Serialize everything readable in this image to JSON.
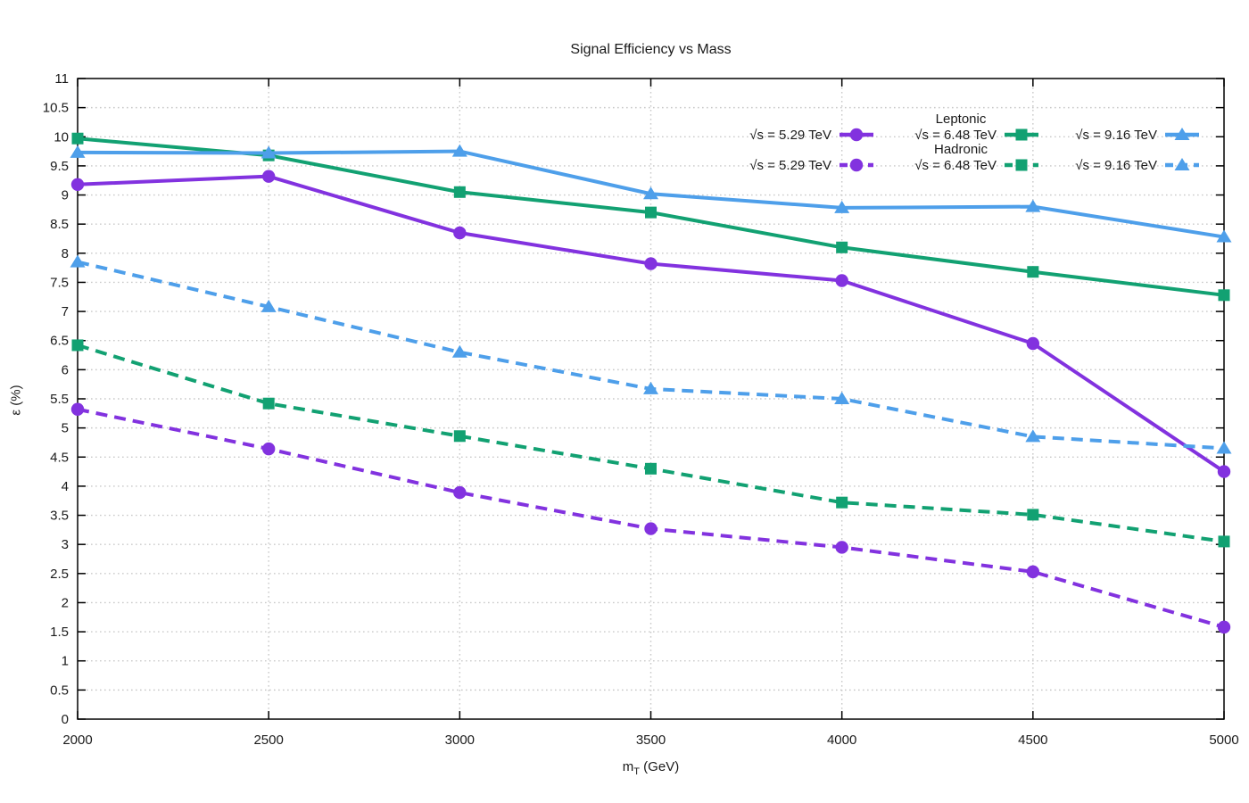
{
  "figure": {
    "title": "Signal Efficiency vs Mass",
    "xlabel": {
      "base": "m",
      "sub": "T",
      "rest": " (GeV)"
    },
    "ylabel": "ε (%)",
    "background": "#ffffff",
    "text_color": "#1a1a1a",
    "grid_color": "#c9c9c9",
    "frame_color": "#000000"
  },
  "chart_data": {
    "type": "line",
    "title": "Signal Efficiency vs Mass",
    "xlabel": "m_T (GeV)",
    "ylabel": "ε (%)",
    "xlim": [
      2000,
      5000
    ],
    "ylim": [
      0,
      11
    ],
    "xticks": [
      2000,
      2500,
      3000,
      3500,
      4000,
      4500,
      5000
    ],
    "ytick_step": 0.5,
    "grid": true,
    "legend_position": "inside top-right, transparent, two groups of three columns",
    "x": [
      2000,
      2500,
      3000,
      3500,
      4000,
      4500,
      5000
    ],
    "series": [
      {
        "name": "√s = 5.29 TeV",
        "group": "Leptonic",
        "style": "solid",
        "marker": "circle",
        "color": "#8232DF",
        "values": [
          9.18,
          9.32,
          8.35,
          7.82,
          7.53,
          6.45,
          4.25
        ]
      },
      {
        "name": "√s = 6.48 TeV",
        "group": "Leptonic",
        "style": "solid",
        "marker": "square",
        "color": "#12A172",
        "values": [
          9.97,
          9.68,
          9.05,
          8.7,
          8.1,
          7.68,
          7.28
        ]
      },
      {
        "name": "√s = 9.16 TeV",
        "group": "Leptonic",
        "style": "solid",
        "marker": "triangle",
        "color": "#4E9FEA",
        "values": [
          9.73,
          9.72,
          9.75,
          9.02,
          8.78,
          8.8,
          8.28
        ]
      },
      {
        "name": "√s = 5.29 TeV",
        "group": "Hadronic",
        "style": "dashed",
        "marker": "circle",
        "color": "#8232DF",
        "values": [
          5.32,
          4.64,
          3.89,
          3.27,
          2.95,
          2.53,
          1.58
        ]
      },
      {
        "name": "√s = 6.48 TeV",
        "group": "Hadronic",
        "style": "dashed",
        "marker": "square",
        "color": "#12A172",
        "values": [
          6.42,
          5.42,
          4.86,
          4.3,
          3.72,
          3.51,
          3.05
        ]
      },
      {
        "name": "√s = 9.16 TeV",
        "group": "Hadronic",
        "style": "dashed",
        "marker": "triangle",
        "color": "#4E9FEA",
        "values": [
          7.85,
          7.08,
          6.3,
          5.67,
          5.5,
          4.85,
          4.65
        ]
      }
    ],
    "legend_groups": [
      {
        "title": "Leptonic",
        "style": "solid"
      },
      {
        "title": "Hadronic",
        "style": "dashed"
      }
    ]
  }
}
